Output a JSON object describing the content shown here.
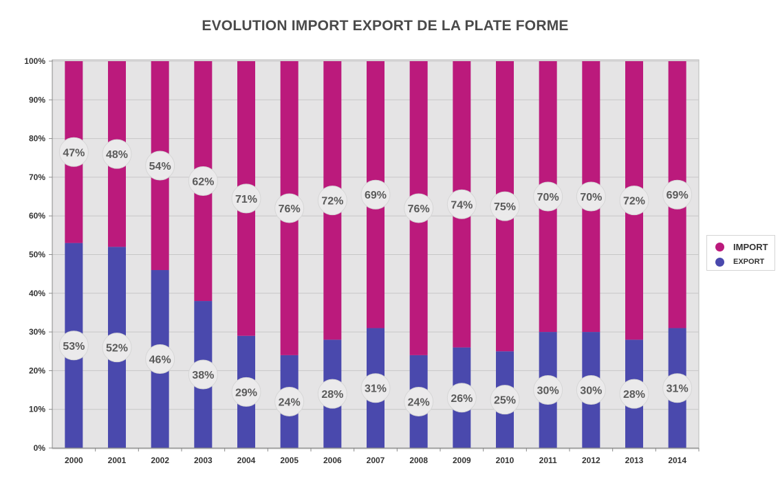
{
  "chart_data": {
    "type": "bar",
    "stacked": true,
    "title": "EVOLUTION IMPORT EXPORT DE LA PLATE FORME",
    "categories": [
      "2000",
      "2001",
      "2002",
      "2003",
      "2004",
      "2005",
      "2006",
      "2007",
      "2008",
      "2009",
      "2010",
      "2011",
      "2012",
      "2013",
      "2014"
    ],
    "series": [
      {
        "name": "EXPORT",
        "color": "#4a49ad",
        "values": [
          53,
          52,
          46,
          38,
          29,
          24,
          28,
          31,
          24,
          26,
          25,
          30,
          30,
          28,
          31
        ]
      },
      {
        "name": "IMPORT",
        "color": "#bb1a7c",
        "values": [
          47,
          48,
          54,
          62,
          71,
          76,
          72,
          69,
          76,
          74,
          75,
          70,
          70,
          72,
          69
        ]
      }
    ],
    "data_labels": {
      "EXPORT": [
        "53%",
        "52%",
        "46%",
        "38%",
        "29%",
        "24%",
        "28%",
        "31%",
        "24%",
        "26%",
        "25%",
        "30%",
        "30%",
        "28%",
        "31%"
      ],
      "IMPORT": [
        "47%",
        "48%",
        "54%",
        "62%",
        "71%",
        "76%",
        "72%",
        "69%",
        "76%",
        "74%",
        "75%",
        "70%",
        "70%",
        "72%",
        "69%"
      ]
    },
    "y_ticks": [
      "0%",
      "10%",
      "20%",
      "30%",
      "40%",
      "50%",
      "60%",
      "70%",
      "80%",
      "90%",
      "100%"
    ],
    "ylim": [
      0,
      100
    ],
    "grid": true,
    "legend_position": "right",
    "plot_background": "#e5e4e5"
  }
}
